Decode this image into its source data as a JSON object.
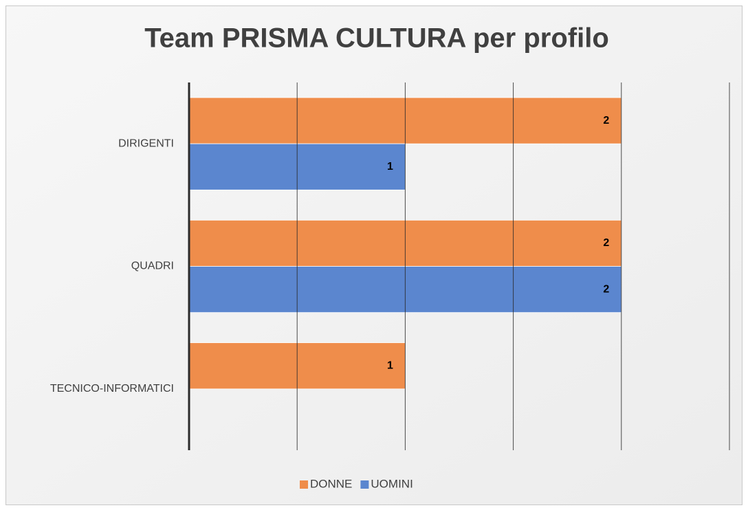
{
  "chart_data": {
    "type": "hbar",
    "title": "Team PRISMA CULTURA per profilo",
    "categories": [
      "DIRIGENTI",
      "QUADRI",
      "TECNICO-INFORMATICI"
    ],
    "series": [
      {
        "name": "DONNE",
        "color": "#ef8d4b",
        "values": [
          2,
          2,
          1
        ]
      },
      {
        "name": "UOMINI",
        "color": "#5b86cf",
        "values": [
          1,
          2,
          null
        ]
      }
    ],
    "xlim": [
      0,
      2.5
    ],
    "xticks": [
      0,
      0.5,
      1,
      1.5,
      2,
      2.5
    ],
    "grid": true,
    "legend": "bottom"
  }
}
